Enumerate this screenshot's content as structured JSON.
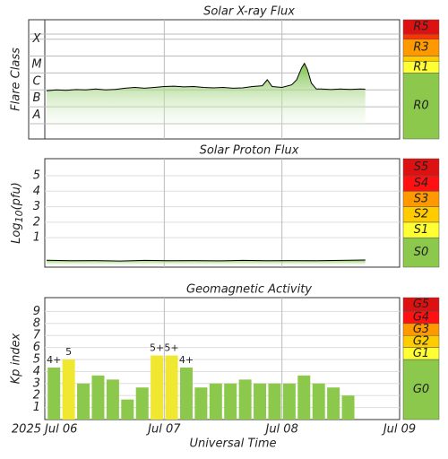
{
  "chart_data": [
    {
      "type": "line",
      "title": "Solar X-ray Flux",
      "ylabel": "Flare Class",
      "xlim": [
        0,
        72
      ],
      "ylim": [
        -8.9,
        -1.85
      ],
      "yticks": [
        {
          "value": -7.5,
          "label": "A"
        },
        {
          "value": -6.5,
          "label": "B"
        },
        {
          "value": -5.5,
          "label": "C"
        },
        {
          "value": -4.5,
          "label": "M"
        },
        {
          "value": -3,
          "label": "X"
        }
      ],
      "ygrid": [
        -8,
        -7,
        -6,
        -5,
        -4,
        -3,
        -2.7
      ],
      "x": [
        0,
        2,
        4,
        6,
        8,
        10,
        12,
        14,
        16,
        18,
        20,
        22,
        24,
        26,
        28,
        30,
        32,
        34,
        36,
        38,
        40,
        42,
        44,
        45,
        46,
        48,
        50,
        51,
        52,
        52.6,
        53.2,
        54,
        55,
        56,
        58,
        60,
        62,
        64,
        65
      ],
      "series": [
        {
          "color": "#000000",
          "fill": "#7cc24a",
          "values": [
            -6.05,
            -6.0,
            -6.02,
            -5.98,
            -6.0,
            -5.95,
            -6.0,
            -5.97,
            -5.9,
            -5.85,
            -5.9,
            -5.85,
            -5.8,
            -5.78,
            -5.82,
            -5.8,
            -5.85,
            -5.88,
            -5.85,
            -5.9,
            -5.88,
            -5.8,
            -5.75,
            -5.4,
            -5.8,
            -5.85,
            -5.7,
            -5.4,
            -4.7,
            -4.43,
            -4.8,
            -5.6,
            -5.95,
            -5.95,
            -5.98,
            -5.95,
            -5.97,
            -5.95,
            -5.96
          ]
        }
      ],
      "scale": [
        {
          "label": "R0",
          "color": "#8cc84b"
        },
        {
          "label": "R1",
          "from": -5,
          "color": "#ffff33"
        },
        {
          "label": null,
          "from": -4.3,
          "color": "#ffcc00"
        },
        {
          "label": "R3",
          "from": -4,
          "color": "#ff9900"
        },
        {
          "label": null,
          "from": -3,
          "color": "#ff3300"
        },
        {
          "label": "R5",
          "from": -2.7,
          "color": "#dd1111"
        }
      ]
    },
    {
      "type": "line",
      "title": "Solar Proton Flux",
      "ylabel": {
        "main": "Log",
        "sub": "10",
        "suffix": "(pfu)"
      },
      "xlim": [
        0,
        72
      ],
      "ylim": [
        -0.9,
        6.1
      ],
      "yticks": [
        1,
        2,
        3,
        4,
        5
      ],
      "x": [
        0,
        5,
        10,
        15,
        20,
        25,
        30,
        35,
        40,
        45,
        50,
        55,
        60,
        65
      ],
      "series": [
        {
          "color": "#000000",
          "fill": "#7cc24a",
          "values": [
            -0.45,
            -0.48,
            -0.47,
            -0.5,
            -0.46,
            -0.48,
            -0.47,
            -0.49,
            -0.46,
            -0.48,
            -0.47,
            -0.48,
            -0.46,
            -0.44
          ]
        }
      ],
      "scale": [
        {
          "label": "S0",
          "color": "#8cc84b"
        },
        {
          "label": "S1",
          "from": 1,
          "color": "#ffff33"
        },
        {
          "label": "S2",
          "from": 2,
          "color": "#ffcc00"
        },
        {
          "label": "S3",
          "from": 3,
          "color": "#ff9900"
        },
        {
          "label": "S4",
          "from": 4,
          "color": "#ff1111"
        },
        {
          "label": "S5",
          "from": 5,
          "color": "#dd1111"
        }
      ]
    },
    {
      "type": "bar",
      "title": "Geomagnetic Activity",
      "ylabel": "Kp index",
      "xlabel": "Universal Time",
      "year": "2025",
      "xlim": [
        0,
        72
      ],
      "ylim": [
        0,
        10.15
      ],
      "yticks": [
        1,
        2,
        3,
        4,
        5,
        6,
        7,
        8,
        9
      ],
      "xticks": [
        {
          "value": 0,
          "label": "Jul 06"
        },
        {
          "value": 24,
          "label": "Jul 07"
        },
        {
          "value": 48,
          "label": "Jul 08"
        },
        {
          "value": 72,
          "label": "Jul 09"
        }
      ],
      "x": [
        1.5,
        4.5,
        7.5,
        10.5,
        13.5,
        16.5,
        19.5,
        22.5,
        25.5,
        28.5,
        31.5,
        34.5,
        37.5,
        40.5,
        43.5,
        46.5,
        49.5,
        52.5,
        55.5,
        58.5,
        61.5
      ],
      "series": [
        {
          "values": [
            4.33,
            5,
            3,
            3.67,
            3.33,
            1.67,
            2.67,
            5.33,
            5.33,
            4.33,
            2.67,
            3,
            3,
            3.33,
            3,
            3,
            3,
            3.67,
            3,
            2.67,
            2
          ],
          "value_labels": [
            "4+",
            "5",
            null,
            null,
            null,
            null,
            null,
            "5+",
            "5+",
            "4+",
            null,
            null,
            null,
            null,
            null,
            null,
            null,
            null,
            null,
            null,
            null
          ],
          "colors": [
            "#8cc84b",
            "#f0e830",
            "#8cc84b",
            "#8cc84b",
            "#8cc84b",
            "#8cc84b",
            "#8cc84b",
            "#f0e830",
            "#f0e830",
            "#8cc84b",
            "#8cc84b",
            "#8cc84b",
            "#8cc84b",
            "#8cc84b",
            "#8cc84b",
            "#8cc84b",
            "#8cc84b",
            "#8cc84b",
            "#8cc84b",
            "#8cc84b",
            "#8cc84b"
          ]
        }
      ],
      "scale": [
        {
          "label": "G0",
          "color": "#8cc84b"
        },
        {
          "label": "G1",
          "from": 5,
          "color": "#ffff33"
        },
        {
          "label": "G2",
          "from": 6,
          "color": "#ffcc00"
        },
        {
          "label": "G3",
          "from": 7,
          "color": "#ff9900"
        },
        {
          "label": "G4",
          "from": 8,
          "color": "#ff1111"
        },
        {
          "label": "G5",
          "from": 9,
          "color": "#dd1111"
        }
      ]
    }
  ]
}
